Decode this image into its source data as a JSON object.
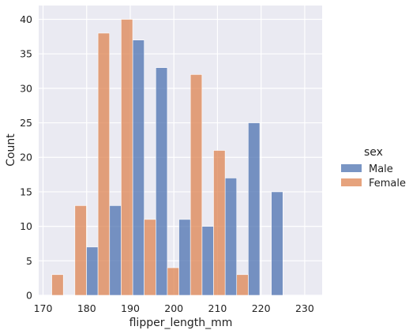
{
  "chart_data": {
    "type": "bar",
    "subtype": "histogram-dodge",
    "xlabel": "flipper_length_mm",
    "ylabel": "Count",
    "xlim": [
      169,
      234
    ],
    "ylim": [
      0,
      42
    ],
    "xticks": [
      170,
      180,
      190,
      200,
      210,
      220,
      230
    ],
    "yticks": [
      0,
      5,
      10,
      15,
      20,
      25,
      30,
      35,
      40
    ],
    "bin_edges": [
      172,
      177.3,
      182.6,
      187.9,
      193.2,
      198.5,
      203.8,
      209.1,
      214.4,
      219.7,
      225,
      230.3
    ],
    "legend": {
      "title": "sex",
      "position": "right"
    },
    "grid": true,
    "series": [
      {
        "name": "Male",
        "color": "#4c72b0",
        "values": [
          0,
          7,
          13,
          37,
          33,
          11,
          10,
          17,
          25,
          15,
          0
        ]
      },
      {
        "name": "Female",
        "color": "#dd8452",
        "values": [
          3,
          13,
          38,
          40,
          11,
          4,
          32,
          21,
          3,
          0,
          0
        ]
      }
    ]
  }
}
